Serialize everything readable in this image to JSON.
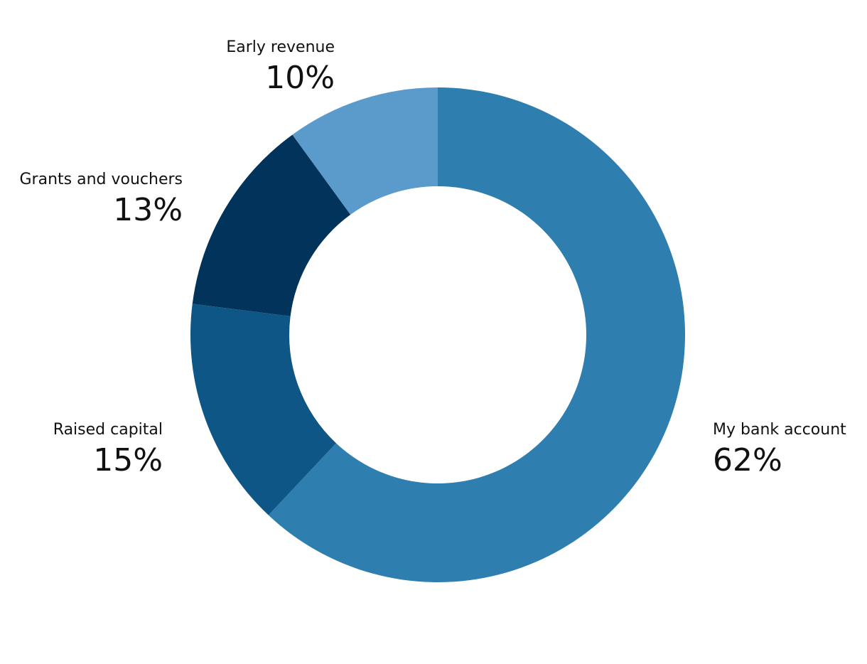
{
  "chart_data": {
    "type": "pie",
    "variant": "donut",
    "legend": "none",
    "slices": [
      {
        "label": "My bank account",
        "value": 62,
        "display": "62%",
        "color": "#2e7eb0"
      },
      {
        "label": "Raised capital",
        "value": 15,
        "display": "15%",
        "color": "#0e5685"
      },
      {
        "label": "Grants and vouchers",
        "value": 13,
        "display": "13%",
        "color": "#02345b"
      },
      {
        "label": "Early revenue",
        "value": 10,
        "display": "10%",
        "color": "#5a9bcb"
      }
    ]
  }
}
